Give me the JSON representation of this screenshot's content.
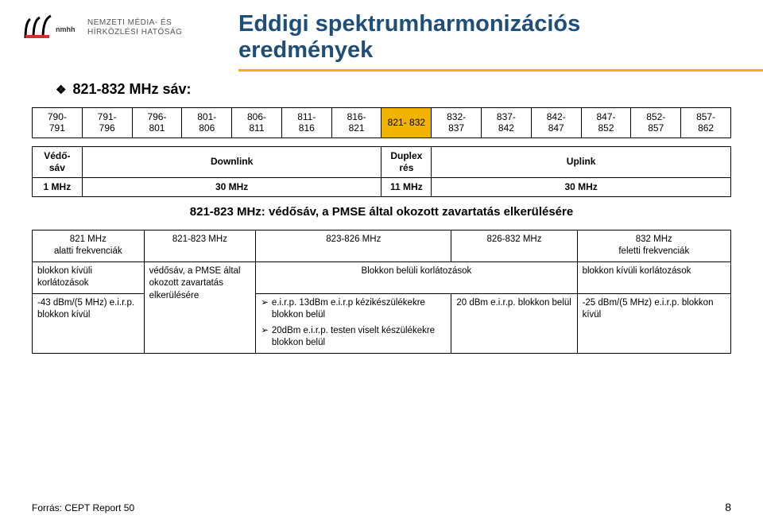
{
  "logo": {
    "line1": "NEMZETI MÉDIA- ÉS",
    "line2": "HÍRKÖZLÉSI HATÓSÁG",
    "bar_colors": [
      "#000000",
      "#000000",
      "#000000",
      "#cc3333",
      "#000000"
    ]
  },
  "colors": {
    "title": "#1f4e79",
    "accent": "#f0b400",
    "text": "#000000",
    "border": "#000000",
    "background": "#ffffff"
  },
  "title": {
    "line1": "Eddigi spektrumharmonizációs",
    "line2": "eredmények",
    "fontsize": 29
  },
  "subhead": "821-832 MHz sáv:",
  "freq_table": {
    "highlight_index": 7,
    "cells": [
      {
        "t": "790-",
        "b": "791"
      },
      {
        "t": "791-",
        "b": "796"
      },
      {
        "t": "796-",
        "b": "801"
      },
      {
        "t": "801-",
        "b": "806"
      },
      {
        "t": "806-",
        "b": "811"
      },
      {
        "t": "811-",
        "b": "816"
      },
      {
        "t": "816-",
        "b": "821"
      },
      {
        "t": "821- 832",
        "b": ""
      },
      {
        "t": "832-",
        "b": "837"
      },
      {
        "t": "837-",
        "b": "842"
      },
      {
        "t": "842-",
        "b": "847"
      },
      {
        "t": "847-",
        "b": "852"
      },
      {
        "t": "852-",
        "b": "857"
      },
      {
        "t": "857-",
        "b": "862"
      }
    ]
  },
  "band_table": {
    "row1": [
      {
        "l1": "Védő-",
        "l2": "sáv",
        "colspan": 1
      },
      {
        "l1": "Downlink",
        "l2": "",
        "colspan": 6
      },
      {
        "l1": "Duplex",
        "l2": "rés",
        "colspan": 1
      },
      {
        "l1": "Uplink",
        "l2": "",
        "colspan": 6
      }
    ],
    "row2": [
      {
        "label": "1 MHz",
        "colspan": 1
      },
      {
        "label": "30 MHz",
        "colspan": 6
      },
      {
        "label": "11 MHz",
        "colspan": 1
      },
      {
        "label": "30 MHz",
        "colspan": 6
      }
    ]
  },
  "note": "821-823 MHz: védősáv, a PMSE által okozott zavartatás elkerülésére",
  "detail_table": {
    "header": [
      {
        "l1": "821 MHz",
        "l2": "alatti frekvenciák"
      },
      {
        "l1": "821-823 MHz",
        "l2": ""
      },
      {
        "l1": "823-826 MHz",
        "l2": ""
      },
      {
        "l1": "826-832 MHz",
        "l2": ""
      },
      {
        "l1": "832 MHz",
        "l2": "feletti frekvenciák"
      }
    ],
    "row2": {
      "col1": "blokkon kívüli korlátozások",
      "col2": "védősáv, a PMSE által okozott zavartatás elkerülésére",
      "col34": "Blokkon belüli korlátozások",
      "col5": "blokkon kívüli korlátozások"
    },
    "row3": {
      "col1": "-43 dBm/(5 MHz) e.i.r.p. blokkon kívül",
      "col3_b1": "e.i.r.p. 13dBm e.i.r.p kézikészülékekre blokkon belül",
      "col3_b2": "20dBm e.i.r.p. testen viselt készülékekre blokkon belül",
      "col4": "20 dBm e.i.r.p. blokkon belül",
      "col5": "-25 dBm/(5 MHz) e.i.r.p. blokkon kívül"
    }
  },
  "footer": "Forrás: CEPT Report 50",
  "pagenum": "8"
}
